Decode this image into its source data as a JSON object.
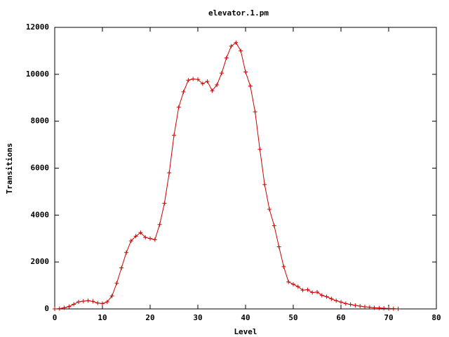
{
  "chart_data": {
    "type": "line",
    "title": "elevator.1.pm",
    "x_label": "Level",
    "y_label": "Transitions",
    "x": [
      0,
      1,
      2,
      3,
      4,
      5,
      6,
      7,
      8,
      9,
      10,
      11,
      12,
      13,
      14,
      15,
      16,
      17,
      18,
      19,
      20,
      21,
      22,
      23,
      24,
      25,
      26,
      27,
      28,
      29,
      30,
      31,
      32,
      33,
      34,
      35,
      36,
      37,
      38,
      39,
      40,
      41,
      42,
      43,
      44,
      45,
      46,
      47,
      48,
      49,
      50,
      51,
      52,
      53,
      54,
      55,
      56,
      57,
      58,
      59,
      60,
      61,
      62,
      63,
      64,
      65,
      66,
      67,
      68,
      69,
      70,
      71,
      72
    ],
    "series": [
      {
        "color": "#cc0000",
        "values": [
          0,
          10,
          50,
          100,
          200,
          300,
          330,
          350,
          320,
          250,
          230,
          300,
          550,
          1100,
          1750,
          2400,
          2900,
          3100,
          3250,
          3050,
          3000,
          2950,
          3600,
          4500,
          5800,
          7400,
          8600,
          9250,
          9750,
          9800,
          9780,
          9600,
          9700,
          9300,
          9550,
          10050,
          10700,
          11200,
          11350,
          11000,
          10100,
          9500,
          8400,
          6800,
          5300,
          4250,
          3550,
          2650,
          1800,
          1150,
          1050,
          950,
          800,
          820,
          700,
          720,
          580,
          520,
          430,
          350,
          290,
          230,
          190,
          150,
          120,
          90,
          70,
          50,
          40,
          30,
          20,
          10,
          5
        ]
      }
    ],
    "xlim": [
      0,
      80
    ],
    "xticks": [
      0,
      10,
      20,
      30,
      40,
      50,
      60,
      70,
      80
    ],
    "ylim": [
      0,
      12000
    ],
    "yticks": [
      0,
      2000,
      4000,
      6000,
      8000,
      10000,
      12000
    ]
  }
}
